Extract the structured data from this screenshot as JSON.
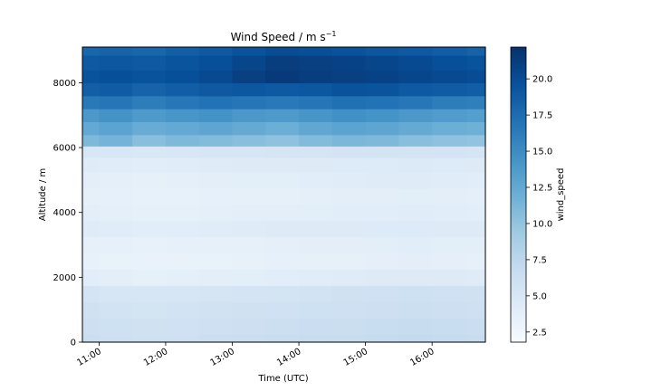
{
  "chart_data": {
    "type": "heatmap",
    "title": "Wind Speed / m s",
    "title_superscript": "−1",
    "xlabel": "Time (UTC)",
    "ylabel": "Altitude / m",
    "colorbar_label": "wind_speed",
    "colormap": "Blues",
    "colormap_stops": [
      "#f7fbff",
      "#deebf7",
      "#c6dbef",
      "#9ecae1",
      "#6baed6",
      "#4292c6",
      "#2171b5",
      "#08519c",
      "#08306b"
    ],
    "xlim": [
      10.75,
      16.8
    ],
    "ylim": [
      0,
      9100
    ],
    "clim": [
      1.8,
      22.2
    ],
    "x_ticks": [
      11,
      12,
      13,
      14,
      15,
      16
    ],
    "x_tick_labels": [
      "11:00",
      "12:00",
      "13:00",
      "14:00",
      "15:00",
      "16:00"
    ],
    "y_ticks": [
      0,
      2000,
      4000,
      6000,
      8000
    ],
    "y_tick_labels": [
      "0",
      "2000",
      "4000",
      "6000",
      "8000"
    ],
    "colorbar_ticks": [
      2.5,
      5.0,
      7.5,
      10.0,
      12.5,
      15.0,
      17.5,
      20.0
    ],
    "colorbar_tick_labels": [
      "2.5",
      "5.0",
      "7.5",
      "10.0",
      "12.5",
      "15.0",
      "17.5",
      "20.0"
    ],
    "x": [
      10.75,
      11.25,
      11.75,
      12.25,
      12.75,
      13.25,
      13.75,
      14.25,
      14.75,
      15.25,
      15.75,
      16.25,
      16.8
    ],
    "altitude": [
      0,
      500,
      1000,
      1500,
      2000,
      2500,
      3000,
      3500,
      4000,
      4500,
      5000,
      5500,
      5900,
      6200,
      6600,
      7000,
      7400,
      7800,
      8200,
      8600,
      9100
    ],
    "wind_speed": [
      [
        6.5,
        6.2,
        6.0,
        6.1,
        6.3,
        6.4,
        6.6,
        6.7,
        6.8,
        6.9,
        7.0,
        6.9,
        6.8
      ],
      [
        6.2,
        6.0,
        5.8,
        5.9,
        6.1,
        6.2,
        6.3,
        6.4,
        6.5,
        6.6,
        6.7,
        6.6,
        6.5
      ],
      [
        5.8,
        5.6,
        5.5,
        5.6,
        5.7,
        5.8,
        5.9,
        6.0,
        6.1,
        6.2,
        6.3,
        6.2,
        6.1
      ],
      [
        5.4,
        5.2,
        5.1,
        5.2,
        5.3,
        5.4,
        5.5,
        5.6,
        5.8,
        5.9,
        6.0,
        5.9,
        5.8
      ],
      [
        4.0,
        3.8,
        3.6,
        3.7,
        3.8,
        3.9,
        4.0,
        4.1,
        4.2,
        4.3,
        4.4,
        4.3,
        4.2
      ],
      [
        3.4,
        3.3,
        3.2,
        3.2,
        3.3,
        3.4,
        3.5,
        3.6,
        3.6,
        3.7,
        3.8,
        3.7,
        3.6
      ],
      [
        3.6,
        3.5,
        3.4,
        3.5,
        3.6,
        3.6,
        3.7,
        3.8,
        3.8,
        3.9,
        4.0,
        3.9,
        3.8
      ],
      [
        4.2,
        4.1,
        4.0,
        4.0,
        4.1,
        4.2,
        4.3,
        4.3,
        4.4,
        4.5,
        4.5,
        4.4,
        4.3
      ],
      [
        3.8,
        3.7,
        3.6,
        3.6,
        3.7,
        3.8,
        3.8,
        3.9,
        4.0,
        4.0,
        4.1,
        4.0,
        3.9
      ],
      [
        3.6,
        3.5,
        3.4,
        3.4,
        3.5,
        3.6,
        3.6,
        3.7,
        3.8,
        3.8,
        3.9,
        3.8,
        3.7
      ],
      [
        3.8,
        3.7,
        3.6,
        3.7,
        3.8,
        3.9,
        3.9,
        4.0,
        4.1,
        4.2,
        4.2,
        4.1,
        4.0
      ],
      [
        4.2,
        4.1,
        4.0,
        4.1,
        4.2,
        4.3,
        4.3,
        4.4,
        4.5,
        4.5,
        4.6,
        4.5,
        4.4
      ],
      [
        5.0,
        5.0,
        4.9,
        5.0,
        5.1,
        5.2,
        5.3,
        5.3,
        5.4,
        5.5,
        5.5,
        5.4,
        5.3
      ],
      [
        11.0,
        11.5,
        10.5,
        11.0,
        10.8,
        10.5,
        10.2,
        10.8,
        11.2,
        11.0,
        10.5,
        10.2,
        10.0
      ],
      [
        12.5,
        13.0,
        12.2,
        12.5,
        12.8,
        12.4,
        12.0,
        12.6,
        13.0,
        12.8,
        12.4,
        12.0,
        11.8
      ],
      [
        14.0,
        14.5,
        13.8,
        14.2,
        14.5,
        14.0,
        13.8,
        14.2,
        14.6,
        14.4,
        14.0,
        13.6,
        13.4
      ],
      [
        16.5,
        16.8,
        16.2,
        16.6,
        17.0,
        16.8,
        16.5,
        16.8,
        17.2,
        17.0,
        16.6,
        16.2,
        16.0
      ],
      [
        18.5,
        18.8,
        18.2,
        18.6,
        19.0,
        19.2,
        19.0,
        19.2,
        19.5,
        19.4,
        19.0,
        18.8,
        18.6
      ],
      [
        19.5,
        19.8,
        19.5,
        19.8,
        20.2,
        21.0,
        21.5,
        21.2,
        21.0,
        20.8,
        20.5,
        20.2,
        20.0
      ],
      [
        19.0,
        19.2,
        19.0,
        19.4,
        19.8,
        20.5,
        21.2,
        21.0,
        20.8,
        20.5,
        20.2,
        19.8,
        19.5
      ],
      [
        18.0,
        18.2,
        18.0,
        18.5,
        19.0,
        19.5,
        20.0,
        19.8,
        19.5,
        19.2,
        19.0,
        18.6,
        18.2
      ]
    ]
  }
}
